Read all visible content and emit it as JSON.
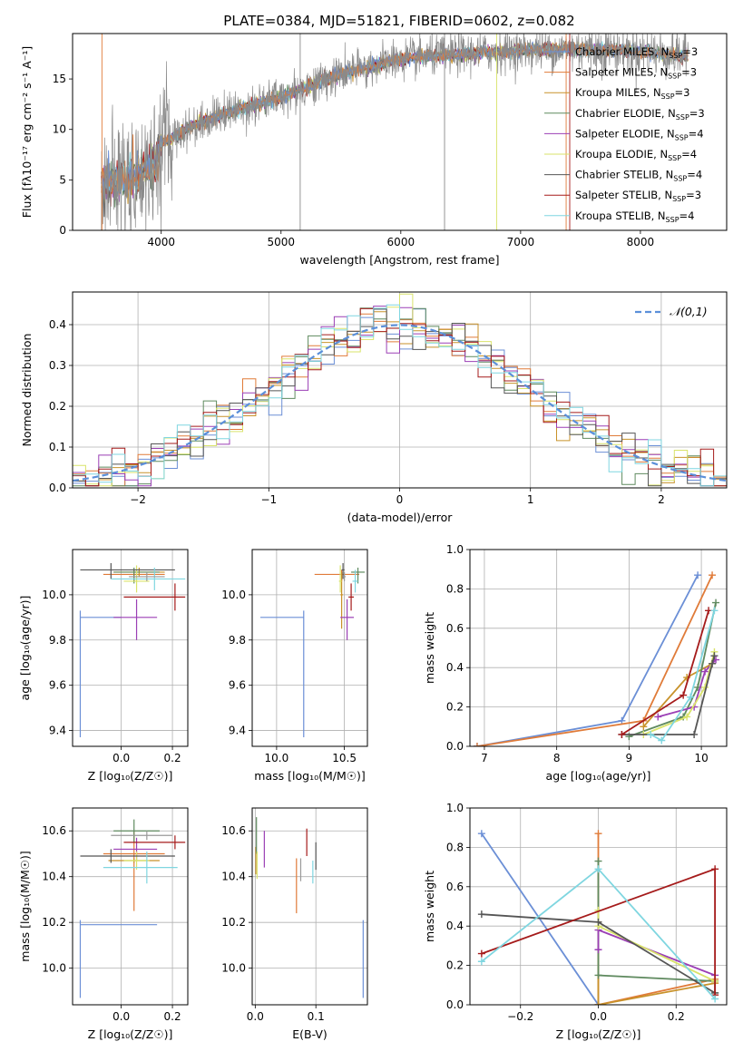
{
  "figure": {
    "title": "PLATE=0384, MJD=51821, FIBERID=0602, z=0.082"
  },
  "colors": [
    "#6b8fd6",
    "#e07b39",
    "#c8922a",
    "#5f8a5f",
    "#9b3fb5",
    "#d9e36a",
    "#555555",
    "#a51b1b",
    "#7fd6e0",
    "#9a9a9a"
  ],
  "chart_data": [
    {
      "id": "spectrum",
      "type": "line",
      "xlabel": "wavelength [Angstrom, rest frame]",
      "ylabel": "Flux [fλ10⁻¹⁷ erg cm⁻² s⁻¹ A⁻¹]",
      "xlim": [
        3260,
        8720
      ],
      "ylim": [
        0,
        19.5
      ],
      "xticks": [
        4000,
        5000,
        6000,
        7000,
        8000
      ],
      "yticks": [
        0,
        5,
        10,
        15
      ],
      "grid": false,
      "legend_position": "top-right",
      "legend": [
        {
          "label": "Chabrier MILES, N",
          "sub": "SSP",
          "suffix": "=3"
        },
        {
          "label": "Salpeter MILES, N",
          "sub": "SSP",
          "suffix": "=3"
        },
        {
          "label": "Kroupa MILES, N",
          "sub": "SSP",
          "suffix": "=3"
        },
        {
          "label": "Chabrier ELODIE, N",
          "sub": "SSP",
          "suffix": "=3"
        },
        {
          "label": "Salpeter ELODIE, N",
          "sub": "SSP",
          "suffix": "=4"
        },
        {
          "label": "Kroupa ELODIE, N",
          "sub": "SSP",
          "suffix": "=4"
        },
        {
          "label": "Chabrier STELIB, N",
          "sub": "SSP",
          "suffix": "=4"
        },
        {
          "label": "Salpeter STELIB, N",
          "sub": "SSP",
          "suffix": "=3"
        },
        {
          "label": "Kroupa STELIB, N",
          "sub": "SSP",
          "suffix": "=4"
        }
      ],
      "continuum_wavelength": [
        3500,
        3650,
        3800,
        3950,
        4000,
        4200,
        4500,
        5000,
        5500,
        6000,
        6500,
        7000,
        7500,
        8000,
        8400
      ],
      "continuum_flux": [
        4.5,
        5.0,
        5.4,
        6.5,
        8.5,
        10.0,
        11.5,
        13.2,
        15.5,
        17.0,
        17.5,
        17.8,
        18.0,
        17.7,
        17.3
      ]
    },
    {
      "id": "residuals",
      "type": "step",
      "xlabel": "(data-model)/error",
      "ylabel": "Normed distribution",
      "xlim": [
        -2.5,
        2.5
      ],
      "ylim": [
        0,
        0.48
      ],
      "xticks": [
        -2,
        -1,
        0,
        1,
        2
      ],
      "yticks": [
        0.0,
        0.1,
        0.2,
        0.3,
        0.4
      ],
      "grid": true,
      "legend_position": "top-right",
      "legend_label": "𝒩(0,1)",
      "bins": 50,
      "reference_curve": "gaussian mean 0 sigma 1"
    },
    {
      "id": "age-vs-metallicity",
      "type": "errorbar",
      "xlabel": "Z [log₁₀(Z/Z☉)]",
      "ylabel": "age  [log₁₀(age/yr)]",
      "xlim": [
        -0.19,
        0.26
      ],
      "ylim": [
        9.33,
        10.2
      ],
      "xticks": [
        0.0,
        0.2
      ],
      "yticks": [
        9.4,
        9.6,
        9.8,
        10.0
      ],
      "grid": true,
      "points": [
        {
          "x": -0.16,
          "xerr": [
            0.0,
            0.16
          ],
          "y": 9.9,
          "yerr": [
            0.53,
            0.03
          ]
        },
        {
          "x": 0.05,
          "xerr": [
            0.12,
            0.12
          ],
          "y": 10.09,
          "yerr": [
            0.03,
            0.02
          ]
        },
        {
          "x": 0.07,
          "xerr": [
            0.1,
            0.1
          ],
          "y": 10.1,
          "yerr": [
            0.02,
            0.02
          ]
        },
        {
          "x": 0.05,
          "xerr": [
            0.08,
            0.1
          ],
          "y": 10.1,
          "yerr": [
            0.05,
            0.02
          ]
        },
        {
          "x": 0.06,
          "xerr": [
            0.09,
            0.08
          ],
          "y": 9.9,
          "yerr": [
            0.1,
            0.08
          ]
        },
        {
          "x": 0.06,
          "xerr": [
            0.05,
            0.05
          ],
          "y": 10.06,
          "yerr": [
            0.05,
            0.07
          ]
        },
        {
          "x": -0.04,
          "xerr": [
            0.12,
            0.25
          ],
          "y": 10.11,
          "yerr": [
            0.04,
            0.03
          ]
        },
        {
          "x": 0.21,
          "xerr": [
            0.2,
            0.04
          ],
          "y": 9.99,
          "yerr": [
            0.06,
            0.06
          ]
        },
        {
          "x": 0.13,
          "xerr": [
            0.17,
            0.12
          ],
          "y": 10.07,
          "yerr": [
            0.05,
            0.05
          ]
        },
        {
          "x": 0.1,
          "xerr": [
            0.07,
            0.07
          ],
          "y": 10.08,
          "yerr": [
            0.02,
            0.02
          ]
        }
      ]
    },
    {
      "id": "age-vs-mass",
      "type": "errorbar",
      "xlabel": "mass [log₁₀(M/M☉)]",
      "ylabel": "",
      "xlim": [
        9.82,
        10.67
      ],
      "ylim": [
        9.33,
        10.2
      ],
      "xticks": [
        10.0,
        10.5
      ],
      "yticks": [
        9.4,
        9.6,
        9.8,
        10.0
      ],
      "grid": true,
      "points": [
        {
          "x": 10.2,
          "xerr": [
            0.32,
            0.0
          ],
          "y": 9.9,
          "yerr": [
            0.53,
            0.03
          ]
        },
        {
          "x": 10.48,
          "xerr": [
            0.2,
            0.13
          ],
          "y": 10.09,
          "yerr": [
            0.03,
            0.02
          ]
        },
        {
          "x": 10.48,
          "xerr": [
            0.01,
            0.01
          ],
          "y": 10.0,
          "yerr": [
            0.15,
            0.1
          ]
        },
        {
          "x": 10.6,
          "xerr": [
            0.05,
            0.05
          ],
          "y": 10.1,
          "yerr": [
            0.05,
            0.02
          ]
        },
        {
          "x": 10.52,
          "xerr": [
            0.05,
            0.05
          ],
          "y": 9.9,
          "yerr": [
            0.1,
            0.08
          ]
        },
        {
          "x": 10.47,
          "xerr": [
            0.01,
            0.01
          ],
          "y": 10.06,
          "yerr": [
            0.05,
            0.07
          ]
        },
        {
          "x": 10.49,
          "xerr": [
            0.01,
            0.01
          ],
          "y": 10.11,
          "yerr": [
            0.04,
            0.03
          ]
        },
        {
          "x": 10.55,
          "xerr": [
            0.02,
            0.02
          ],
          "y": 9.99,
          "yerr": [
            0.06,
            0.06
          ]
        },
        {
          "x": 10.58,
          "xerr": [
            0.02,
            0.02
          ],
          "y": 10.06,
          "yerr": [
            0.05,
            0.05
          ]
        },
        {
          "x": 10.5,
          "xerr": [
            0.01,
            0.01
          ],
          "y": 10.08,
          "yerr": [
            0.02,
            0.02
          ]
        }
      ]
    },
    {
      "id": "weight-vs-age",
      "type": "line",
      "xlabel": "age  [log₁₀(age/yr)]",
      "ylabel": "mass weight",
      "xlim": [
        6.8,
        10.35
      ],
      "ylim": [
        0,
        1.0
      ],
      "xticks": [
        7,
        8,
        9,
        10
      ],
      "yticks": [
        0.0,
        0.2,
        0.4,
        0.6,
        0.8,
        1.0
      ],
      "grid": true,
      "series": [
        {
          "x": [
            6.9,
            8.9,
            9.95
          ],
          "y": [
            0.0,
            0.13,
            0.87
          ]
        },
        {
          "x": [
            6.9,
            9.2,
            10.15
          ],
          "y": [
            0.0,
            0.13,
            0.87
          ]
        },
        {
          "x": [
            9.2,
            9.8,
            10.15
          ],
          "y": [
            0.1,
            0.35,
            0.42
          ]
        },
        {
          "x": [
            9.0,
            9.75,
            9.95,
            10.2
          ],
          "y": [
            0.05,
            0.15,
            0.3,
            0.73
          ]
        },
        {
          "x": [
            9.4,
            9.9,
            10.05,
            10.2
          ],
          "y": [
            0.15,
            0.2,
            0.38,
            0.44
          ]
        },
        {
          "x": [
            9.2,
            9.8,
            10.05,
            10.18
          ],
          "y": [
            0.06,
            0.15,
            0.3,
            0.48
          ]
        },
        {
          "x": [
            8.9,
            9.9,
            10.15,
            10.18
          ],
          "y": [
            0.06,
            0.06,
            0.42,
            0.46
          ]
        },
        {
          "x": [
            8.9,
            9.75,
            10.1
          ],
          "y": [
            0.06,
            0.26,
            0.69
          ]
        },
        {
          "x": [
            9.3,
            9.45,
            9.85,
            10.18
          ],
          "y": [
            0.06,
            0.03,
            0.25,
            0.69
          ]
        }
      ]
    },
    {
      "id": "mass-vs-metallicity",
      "type": "errorbar",
      "xlabel": "Z [log₁₀(Z/Z☉)]",
      "ylabel": "mass [log₁₀(M/M☉)]",
      "xlim": [
        -0.19,
        0.26
      ],
      "ylim": [
        9.84,
        10.7
      ],
      "xticks": [
        0.0,
        0.2
      ],
      "yticks": [
        10.0,
        10.2,
        10.4,
        10.6
      ],
      "grid": true,
      "points": [
        {
          "x": -0.16,
          "xerr": [
            0.0,
            0.3
          ],
          "y": 10.19,
          "yerr": [
            0.32,
            0.02
          ]
        },
        {
          "x": 0.05,
          "xerr": [
            0.12,
            0.12
          ],
          "y": 10.5,
          "yerr": [
            0.25,
            0.1
          ]
        },
        {
          "x": 0.05,
          "xerr": [
            0.1,
            0.1
          ],
          "y": 10.47,
          "yerr": [
            0.01,
            0.01
          ]
        },
        {
          "x": 0.05,
          "xerr": [
            0.08,
            0.1
          ],
          "y": 10.6,
          "yerr": [
            0.05,
            0.05
          ]
        },
        {
          "x": 0.06,
          "xerr": [
            0.09,
            0.08
          ],
          "y": 10.52,
          "yerr": [
            0.05,
            0.05
          ]
        },
        {
          "x": 0.06,
          "xerr": [
            0.05,
            0.05
          ],
          "y": 10.47,
          "yerr": [
            0.04,
            0.04
          ]
        },
        {
          "x": -0.04,
          "xerr": [
            0.12,
            0.25
          ],
          "y": 10.49,
          "yerr": [
            0.03,
            0.03
          ]
        },
        {
          "x": 0.21,
          "xerr": [
            0.2,
            0.04
          ],
          "y": 10.55,
          "yerr": [
            0.03,
            0.03
          ]
        },
        {
          "x": 0.1,
          "xerr": [
            0.17,
            0.12
          ],
          "y": 10.44,
          "yerr": [
            0.07,
            0.07
          ]
        },
        {
          "x": 0.1,
          "xerr": [
            0.14,
            0.1
          ],
          "y": 10.58,
          "yerr": [
            0.02,
            0.02
          ]
        }
      ]
    },
    {
      "id": "mass-vs-extinction",
      "type": "errorbar",
      "xlabel": "E(B-V)",
      "ylabel": "",
      "xlim": [
        -0.005,
        0.185
      ],
      "ylim": [
        9.84,
        10.7
      ],
      "xticks": [
        0.0,
        0.1
      ],
      "yticks": [
        10.0,
        10.2,
        10.4,
        10.6
      ],
      "grid": true,
      "points": [
        {
          "x": 0.178,
          "xerr": [
            0,
            0
          ],
          "y": 10.19,
          "yerr": [
            0.32,
            0.02
          ]
        },
        {
          "x": 0.068,
          "xerr": [
            0,
            0
          ],
          "y": 10.36,
          "yerr": [
            0.12,
            0.12
          ]
        },
        {
          "x": 0.001,
          "xerr": [
            0,
            0
          ],
          "y": 10.47,
          "yerr": [
            0.06,
            0.06
          ]
        },
        {
          "x": 0.002,
          "xerr": [
            0,
            0
          ],
          "y": 10.58,
          "yerr": [
            0.08,
            0.08
          ]
        },
        {
          "x": 0.015,
          "xerr": [
            0,
            0
          ],
          "y": 10.52,
          "yerr": [
            0.08,
            0.08
          ]
        },
        {
          "x": 0.003,
          "xerr": [
            0,
            0
          ],
          "y": 10.45,
          "yerr": [
            0.06,
            0.06
          ]
        },
        {
          "x": 0.1,
          "xerr": [
            0,
            0
          ],
          "y": 10.49,
          "yerr": [
            0.06,
            0.06
          ]
        },
        {
          "x": 0.085,
          "xerr": [
            0,
            0
          ],
          "y": 10.55,
          "yerr": [
            0.06,
            0.06
          ]
        },
        {
          "x": 0.095,
          "xerr": [
            0,
            0
          ],
          "y": 10.42,
          "yerr": [
            0.05,
            0.05
          ]
        },
        {
          "x": 0.075,
          "xerr": [
            0,
            0
          ],
          "y": 10.43,
          "yerr": [
            0.05,
            0.05
          ]
        }
      ]
    },
    {
      "id": "weight-vs-metallicity",
      "type": "line",
      "xlabel": "Z [log₁₀(Z/Z☉)]",
      "ylabel": "mass weight",
      "xlim": [
        -0.33,
        0.33
      ],
      "ylim": [
        0,
        1.0
      ],
      "xticks": [
        -0.2,
        0.0,
        0.2
      ],
      "yticks": [
        0.0,
        0.2,
        0.4,
        0.6,
        0.8,
        1.0
      ],
      "grid": true,
      "series": [
        {
          "x": [
            -0.3,
            0.0
          ],
          "y": [
            0.87,
            0.0
          ]
        },
        {
          "x": [
            0.0,
            0.0,
            0.3
          ],
          "y": [
            0.87,
            0.0,
            0.13
          ]
        },
        {
          "x": [
            0.0,
            0.0,
            0.3
          ],
          "y": [
            0.42,
            0.0,
            0.11
          ]
        },
        {
          "x": [
            0.0,
            0.0,
            0.3,
            0.3
          ],
          "y": [
            0.73,
            0.15,
            0.12,
            0.06
          ]
        },
        {
          "x": [
            0.0,
            0.0,
            0.3
          ],
          "y": [
            0.28,
            0.38,
            0.15
          ]
        },
        {
          "x": [
            0.0,
            0.0,
            0.3
          ],
          "y": [
            0.48,
            0.4,
            0.12
          ]
        },
        {
          "x": [
            -0.3,
            0.0,
            0.3
          ],
          "y": [
            0.46,
            0.42,
            0.06
          ]
        },
        {
          "x": [
            -0.3,
            0.3,
            0.3
          ],
          "y": [
            0.26,
            0.69,
            0.05
          ]
        },
        {
          "x": [
            -0.3,
            0.0,
            0.3
          ],
          "y": [
            0.22,
            0.69,
            0.03
          ]
        }
      ]
    }
  ]
}
